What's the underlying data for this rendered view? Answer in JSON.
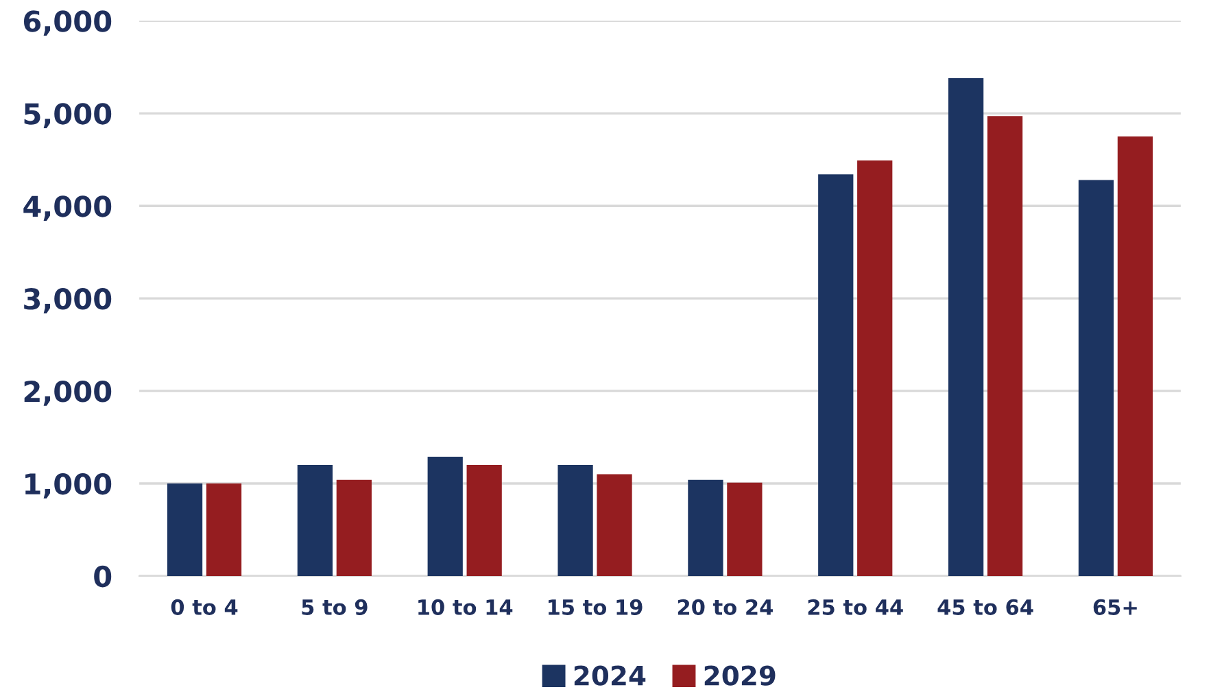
{
  "chart_data": {
    "type": "bar",
    "categories": [
      "0 to 4",
      "5 to 9",
      "10 to 14",
      "15 to 19",
      "20 to 24",
      "25 to 44",
      "45 to 64",
      "65+"
    ],
    "series": [
      {
        "name": "2024",
        "color": "#1c3461",
        "values": [
          1000,
          1200,
          1290,
          1200,
          1040,
          4340,
          5380,
          4280
        ]
      },
      {
        "name": "2029",
        "color": "#951d20",
        "values": [
          1000,
          1040,
          1200,
          1100,
          1010,
          4490,
          4970,
          4750
        ]
      }
    ],
    "ylim": [
      0,
      6000
    ],
    "yticks": [
      {
        "value": 0,
        "label": "0"
      },
      {
        "value": 1000,
        "label": "1,000"
      },
      {
        "value": 2000,
        "label": "2,000"
      },
      {
        "value": 3000,
        "label": "3,000"
      },
      {
        "value": 4000,
        "label": "4,000"
      },
      {
        "value": 5000,
        "label": "5,000"
      },
      {
        "value": 6000,
        "label": "6,000"
      }
    ],
    "grid": "y",
    "legend": "bottom"
  }
}
